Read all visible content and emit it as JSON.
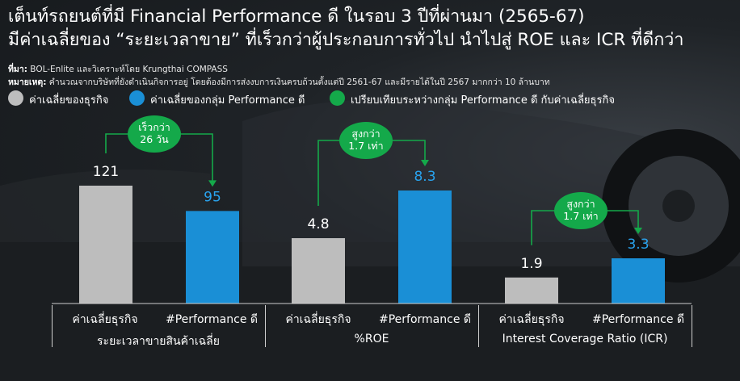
{
  "title": {
    "line1": "เต็นท์รถยนต์ที่มี Financial Performance ดี ในรอบ 3 ปีที่ผ่านมา (2565-67)",
    "line2": "มีค่าเฉลี่ยของ “ระยะเวลาขาย” ที่เร็วกว่าผู้ประกอบการทั่วไป นำไปสู่ ROE และ ICR ที่ดีกว่า"
  },
  "source": {
    "label": "ที่มา:",
    "text": "BOL-Enlite และวิเคราะห์โดย Krungthai COMPASS"
  },
  "note": {
    "label": "หมายเหตุ:",
    "text": "คำนวณจากบริษัทที่ยังดำเนินกิจการอยู่ โดยต้องมีการส่งงบการเงินครบถ้วนตั้งแต่ปี 2561-67 และมีรายได้ในปี 2567 มากกว่า 10 ล้านบาท"
  },
  "legend": [
    {
      "label": "ค่าเฉลี่ยของธุรกิจ",
      "color": "#bdbdbd"
    },
    {
      "label": "ค่าเฉลี่ยของกลุ่ม Performance ดี",
      "color": "#1a8fd6"
    },
    {
      "label": "เปรียบเทียบระหว่างกลุ่ม Performance ดี กับค่าเฉลี่ยธุรกิจ",
      "color": "#14a94a"
    }
  ],
  "colors": {
    "business": "#bdbdbd",
    "performance": "#1a8fd6",
    "performance_label": "#29a3ee",
    "compare": "#14a94a"
  },
  "chart_data": [
    {
      "type": "bar",
      "group_label": "ระยะเวลาขายสินค้าเฉลี่ย",
      "categories": [
        "ค่าเฉลี่ยธุรกิจ",
        "#Performance ดี"
      ],
      "values": [
        121,
        95
      ],
      "value_labels": [
        "121",
        "95"
      ],
      "annotation": {
        "line1": "เร็วกว่า",
        "line2": "26 วัน"
      }
    },
    {
      "type": "bar",
      "group_label": "%ROE",
      "categories": [
        "ค่าเฉลี่ยธุรกิจ",
        "#Performance ดี"
      ],
      "values": [
        4.8,
        8.3
      ],
      "value_labels": [
        "4.8",
        "8.3"
      ],
      "annotation": {
        "line1": "สูงกว่า",
        "line2": "1.7 เท่า"
      }
    },
    {
      "type": "bar",
      "group_label": "Interest Coverage Ratio (ICR)",
      "categories": [
        "ค่าเฉลี่ยธุรกิจ",
        "#Performance ดี"
      ],
      "values": [
        1.9,
        3.3
      ],
      "value_labels": [
        "1.9",
        "3.3"
      ],
      "annotation": {
        "line1": "สูงกว่า",
        "line2": "1.7 เท่า"
      }
    }
  ]
}
